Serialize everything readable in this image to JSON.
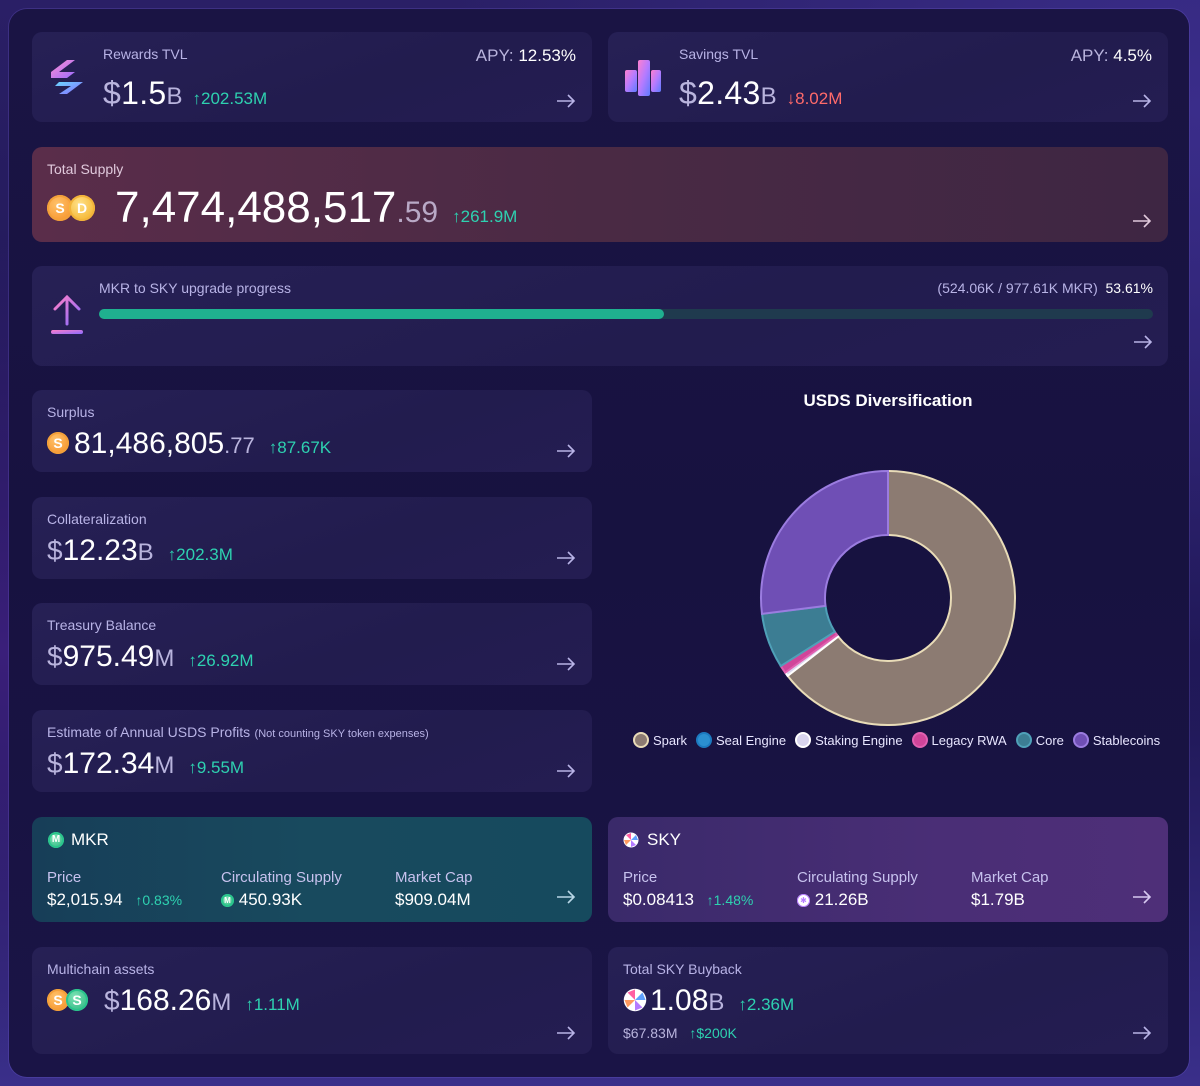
{
  "rewards": {
    "label": "Rewards TVL",
    "apy_label": "APY:",
    "apy_value": "12.53%",
    "currency": "$",
    "value": "1.5",
    "suffix": "B",
    "delta": "↑202.53M"
  },
  "savings": {
    "label": "Savings TVL",
    "apy_label": "APY:",
    "apy_value": "4.5%",
    "currency": "$",
    "value": "2.43",
    "suffix": "B",
    "delta": "↓8.02M"
  },
  "total_supply": {
    "label": "Total Supply",
    "value": "7,474,488,517",
    "decimals": ".59",
    "delta": "↑261.9M"
  },
  "upgrade": {
    "label": "MKR to SKY upgrade progress",
    "detail": "(524.06K / 977.61K MKR)",
    "percent_text": "53.61%",
    "progress": 0.5361
  },
  "surplus": {
    "label": "Surplus",
    "value": "81,486,805",
    "decimals": ".77",
    "delta": "↑87.67K"
  },
  "collateralization": {
    "label": "Collateralization",
    "currency": "$",
    "value": "12.23",
    "suffix": "B",
    "delta": "↑202.3M"
  },
  "treasury": {
    "label": "Treasury Balance",
    "currency": "$",
    "value": "975.49",
    "suffix": "M",
    "delta": "↑26.92M"
  },
  "profits": {
    "label": "Estimate of Annual USDS Profits",
    "note": "(Not counting SKY token expenses)",
    "currency": "$",
    "value": "172.34",
    "suffix": "M",
    "delta": "↑9.55M"
  },
  "mkr": {
    "name": "MKR",
    "price_label": "Price",
    "price": "$2,015.94",
    "price_delta": "↑0.83%",
    "supply_label": "Circulating Supply",
    "supply": "450.93K",
    "cap_label": "Market Cap",
    "cap": "$909.04M"
  },
  "sky": {
    "name": "SKY",
    "price_label": "Price",
    "price": "$0.08413",
    "price_delta": "↑1.48%",
    "supply_label": "Circulating Supply",
    "supply": "21.26B",
    "cap_label": "Market Cap",
    "cap": "$1.79B"
  },
  "multichain": {
    "label": "Multichain assets",
    "currency": "$",
    "value": "168.26",
    "suffix": "M",
    "delta": "↑1.11M"
  },
  "buyback": {
    "label": "Total SKY Buyback",
    "value": "1.08",
    "suffix": "B",
    "delta": "↑2.36M",
    "usd": "$67.83M",
    "usd_delta": "↑$200K"
  },
  "chart_data": {
    "type": "pie",
    "title": "USDS Diversification",
    "categories": [
      "Spark",
      "Seal Engine",
      "Staking Engine",
      "Legacy RWA",
      "Core",
      "Stablecoins"
    ],
    "values": [
      64.5,
      0.0,
      0.5,
      1.0,
      7.0,
      27.0
    ],
    "colors": [
      "#8c7b72",
      "#2b8fd0",
      "#d8d4ee",
      "#d0459a",
      "#3c7d93",
      "#6f4fb5"
    ],
    "stroke_colors": [
      "#e9dcb8",
      "#1c7ac0",
      "#ffffff",
      "#e060b0",
      "#4fa0b8",
      "#9b7ce0"
    ],
    "legend_position": "bottom"
  }
}
